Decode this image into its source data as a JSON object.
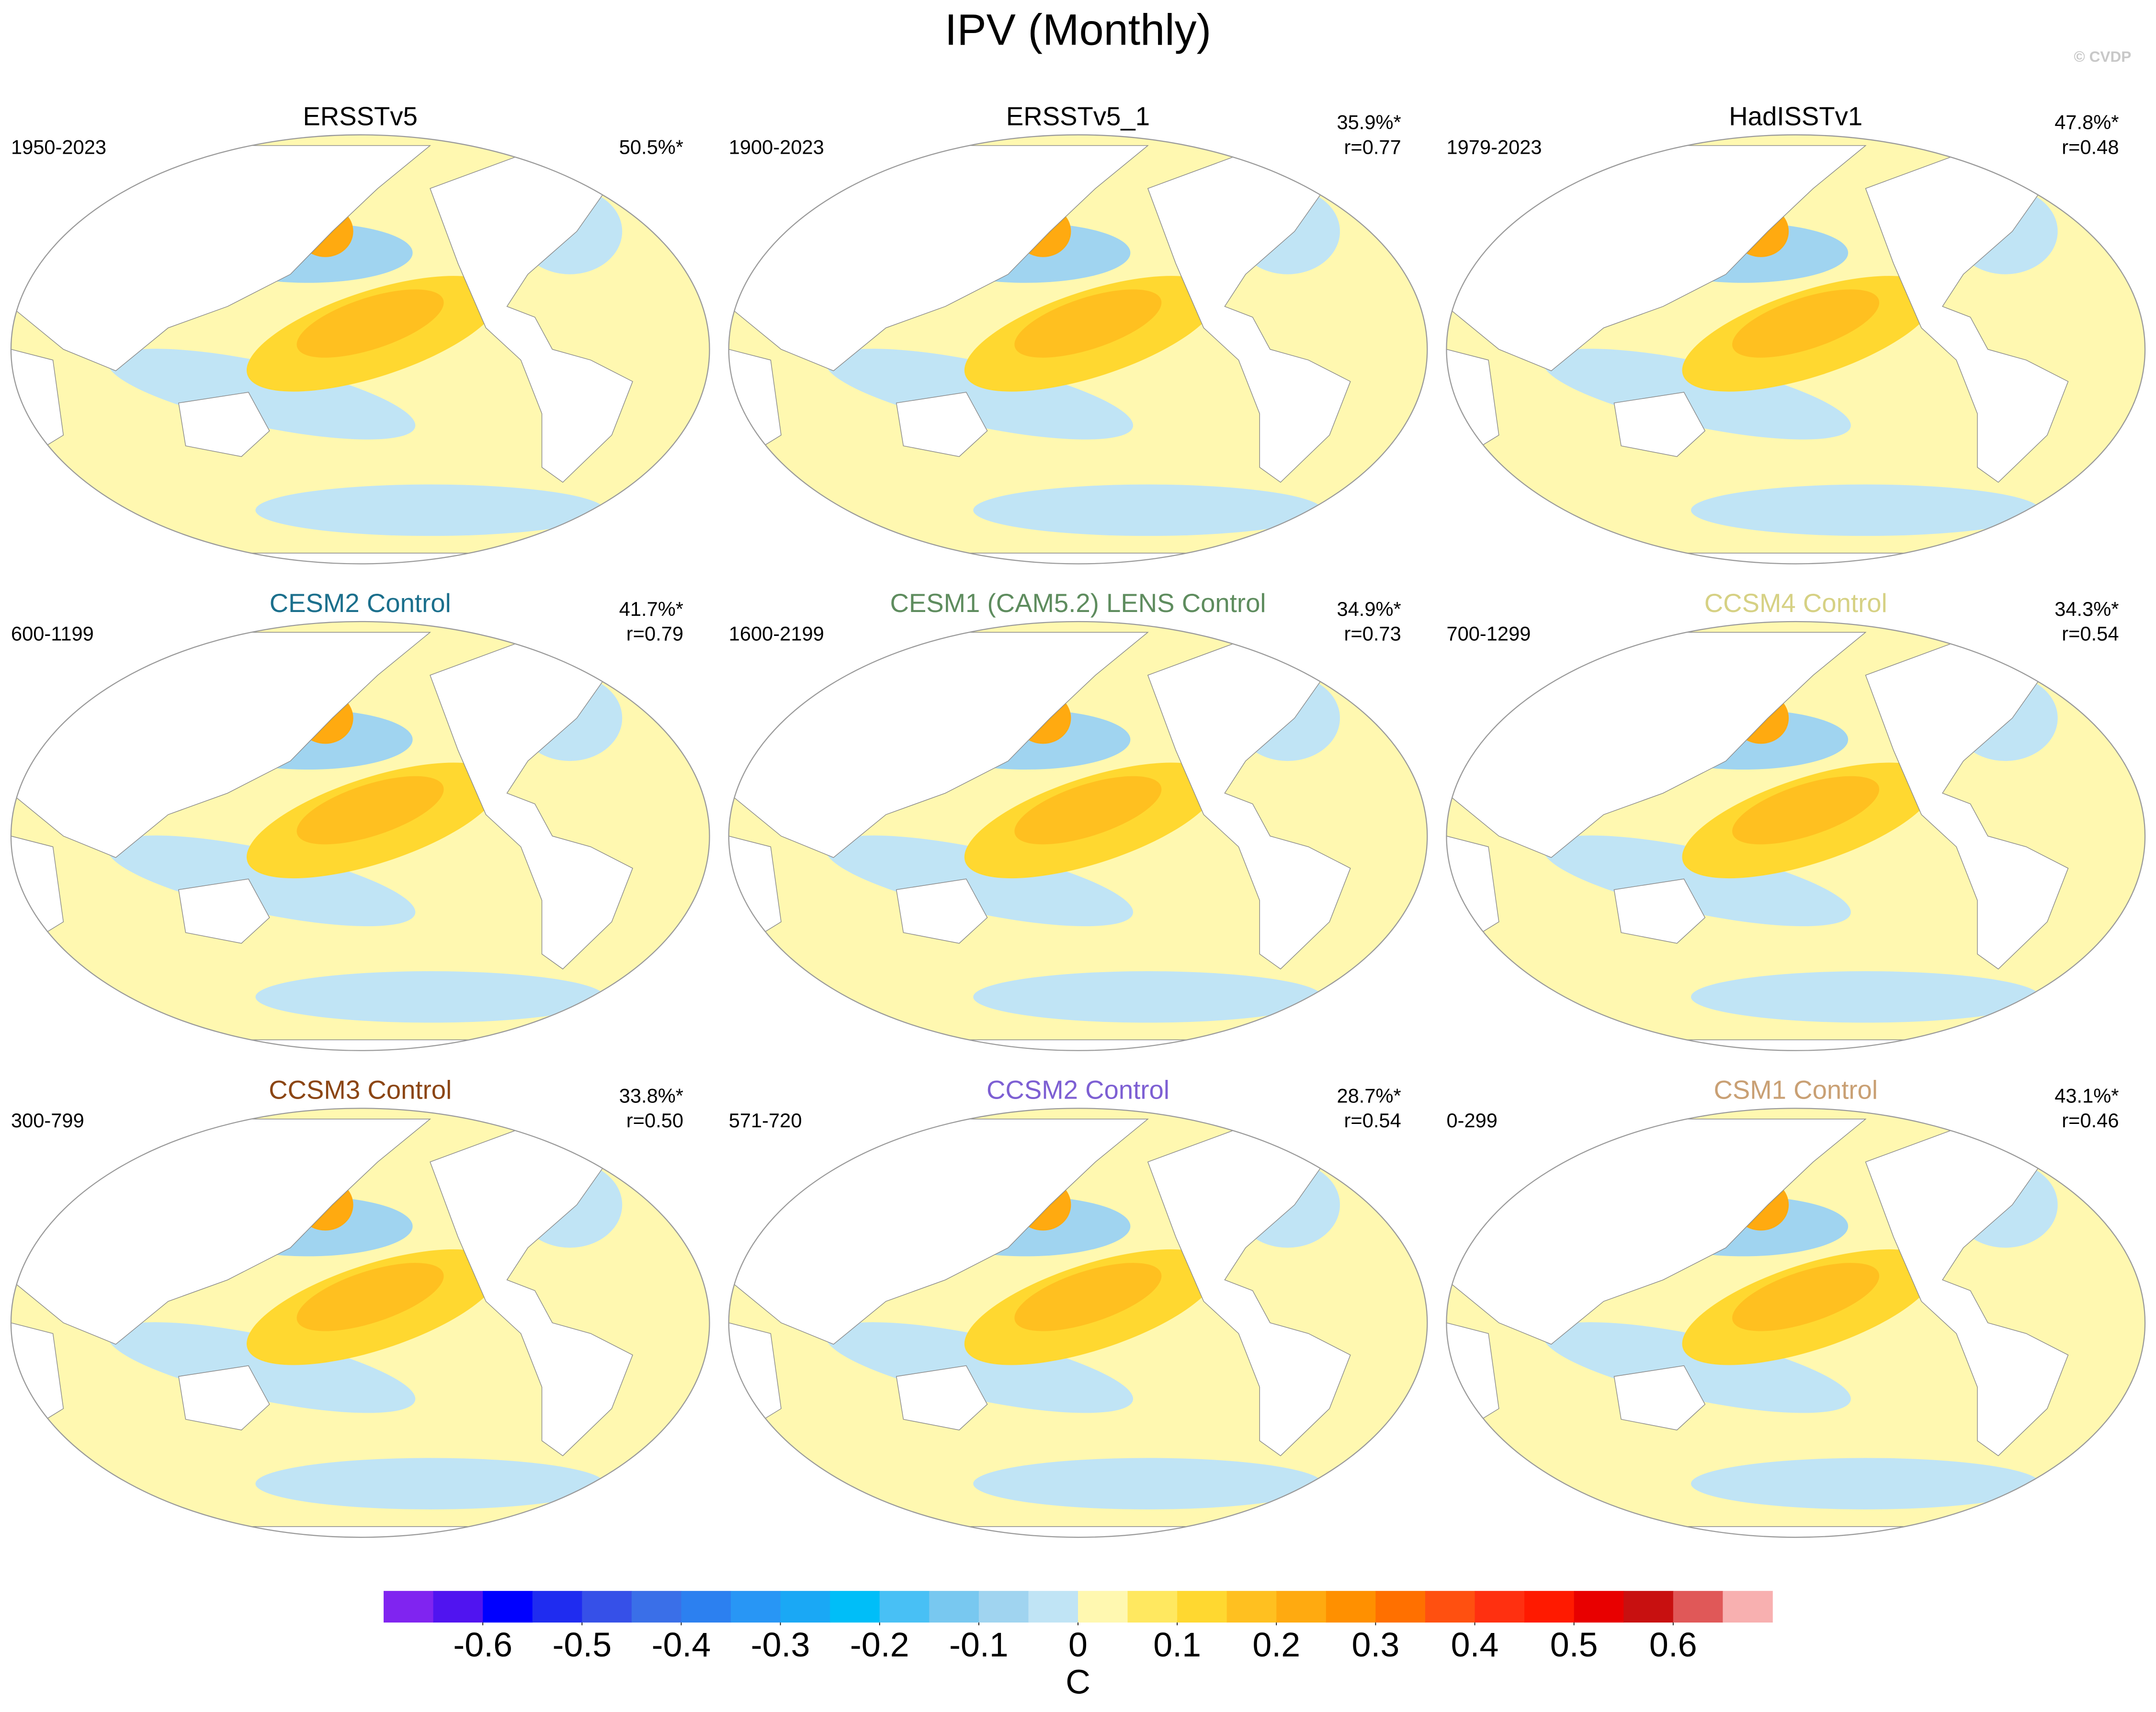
{
  "title": "IPV (Monthly)",
  "credit": "© CVDP",
  "panels": [
    {
      "name": "ERSSTv5",
      "name_color": "#000000",
      "period": "1950-2023",
      "variance": "50.5%*"
    },
    {
      "name": "ERSSTv5_1",
      "name_color": "#000000",
      "period": "1900-2023",
      "variance": "35.9%*",
      "correlation": "r=0.77"
    },
    {
      "name": "HadISSTv1",
      "name_color": "#000000",
      "period": "1979-2023",
      "variance": "47.8%*",
      "correlation": "r=0.48"
    },
    {
      "name": "CESM2 Control",
      "name_color": "#1b6f8c",
      "period": "600-1199",
      "variance": "41.7%*",
      "correlation": "r=0.79"
    },
    {
      "name": "CESM1 (CAM5.2) LENS Control",
      "name_color": "#5e8c5e",
      "period": "1600-2199",
      "variance": "34.9%*",
      "correlation": "r=0.73"
    },
    {
      "name": "CCSM4 Control",
      "name_color": "#d6d184",
      "period": "700-1299",
      "variance": "34.3%*",
      "correlation": "r=0.54"
    },
    {
      "name": "CCSM3 Control",
      "name_color": "#8b4513",
      "period": "300-799",
      "variance": "33.8%*",
      "correlation": "r=0.50"
    },
    {
      "name": "CCSM2 Control",
      "name_color": "#7d5fd3",
      "period": "571-720",
      "variance": "28.7%*",
      "correlation": "r=0.54"
    },
    {
      "name": "CSM1 Control",
      "name_color": "#c9a074",
      "period": "0-299",
      "variance": "43.1%*",
      "correlation": "r=0.46"
    }
  ],
  "colorbar": {
    "unit": "C",
    "lim": [
      -0.7,
      0.7
    ],
    "ticks": [
      -0.6,
      -0.5,
      -0.4,
      -0.3,
      -0.2,
      -0.1,
      0,
      0.1,
      0.2,
      0.3,
      0.4,
      0.5,
      0.6
    ],
    "colors": [
      "#8024f0",
      "#5014f0",
      "#0000ff",
      "#1f2cf0",
      "#3650e8",
      "#3a6fe8",
      "#2c80f0",
      "#2896f5",
      "#1aa8f5",
      "#00bef8",
      "#48c0f5",
      "#78c8f0",
      "#a0d4f0",
      "#c0e4f5",
      "#fff8b0",
      "#ffe860",
      "#ffd830",
      "#ffc020",
      "#ffaa10",
      "#ff9000",
      "#ff7000",
      "#ff5010",
      "#ff3010",
      "#ff1a00",
      "#e80000",
      "#c81010",
      "#e05858",
      "#f8b0b0"
    ]
  }
}
